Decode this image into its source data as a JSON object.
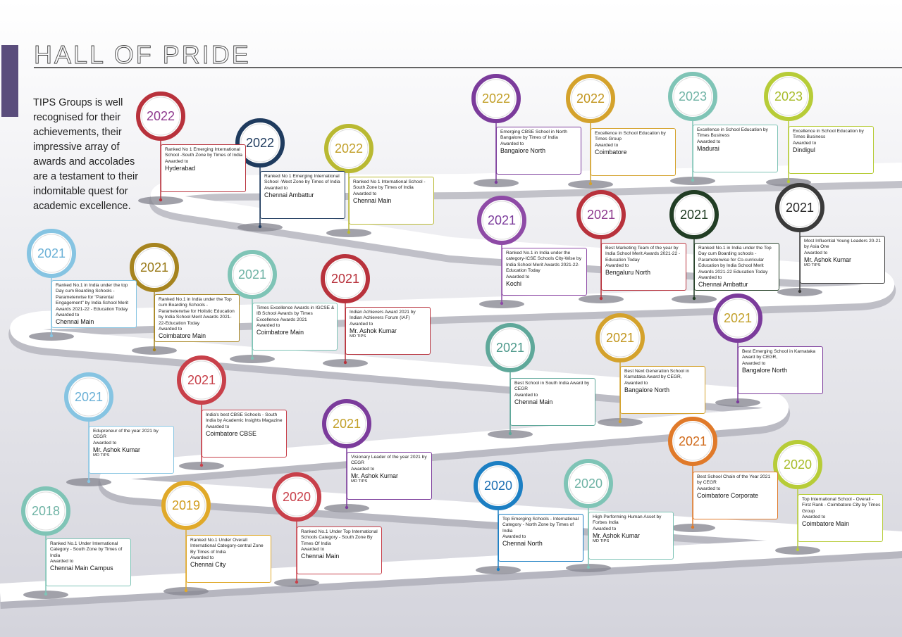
{
  "title": "HALL OF PRIDE",
  "intro": "TIPS Groups is well recognised for their achievements, their impressive array of awards and accolades are a testament to their indomitable quest for academic excellence.",
  "awards": [
    {
      "year": "2022",
      "color": "#b8323c",
      "year_color": "#8e3a8e",
      "description": "Ranked No 1 Emerging International School -South Zone by Times of India",
      "awarded_label": "Awarded to",
      "recipient": "Hyderabad"
    },
    {
      "year": "2022",
      "color": "#1f3b5e",
      "year_color": "#1f3b5e",
      "description": "Ranked No 1 Emerging International School -West Zone by Times of India",
      "awarded_label": "Awarded to",
      "recipient": "Chennai Ambattur"
    },
    {
      "year": "2022",
      "color": "#b9b932",
      "year_color": "#c2a02a",
      "description": "Ranked  No 1 International School - South Zone by Times of India",
      "awarded_label": "Awarded to",
      "recipient": "Chennai Main"
    },
    {
      "year": "2022",
      "color": "#7b3b9b",
      "year_color": "#c2a02a",
      "description": "Emerging CBSE School in North Bangalore by Times of India",
      "awarded_label": "Awarded to",
      "recipient": "Bangalore North"
    },
    {
      "year": "2022",
      "color": "#d4a22c",
      "year_color": "#c2961f",
      "description": "Excellence in School Education by Times Group",
      "awarded_label": "Awarded to",
      "recipient": "Coimbatore"
    },
    {
      "year": "2023",
      "color": "#7fc4b6",
      "year_color": "#6fb3a5",
      "description": "Excellence in School Education by Times Business",
      "awarded_label": "Awarded to",
      "recipient": "Madurai"
    },
    {
      "year": "2023",
      "color": "#b7cc38",
      "year_color": "#a8bc2a",
      "description": "Excellence in School Education by Times Business",
      "awarded_label": "Awarded to",
      "recipient": "Dindigul"
    },
    {
      "year": "2021",
      "color": "#8e4aa6",
      "year_color": "#7b3b9b",
      "description": "Ranked No.1 in India under the category-ICSE Schools City-Wise by India School Merit Awards 2021-22-Education Today",
      "awarded_label": "Awarded to",
      "recipient": "Kochi"
    },
    {
      "year": "2021",
      "color": "#b8323c",
      "year_color": "#8e3a8e",
      "description": "Best Marketing Team of the year by India School Merit Awards 2021-22 - Education Today",
      "awarded_label": "Awarded to",
      "recipient": "Bengaluru North"
    },
    {
      "year": "2021",
      "color": "#213d24",
      "year_color": "#213d24",
      "description": "Ranked No.1 in India under the Top Day cum Boarding schools - Parameterwise for Co-curricular Education by India School Merit Awards 2021-22 Education Today",
      "awarded_label": "Awarded to",
      "recipient": "Chennai Ambattur"
    },
    {
      "year": "2021",
      "color": "#3a3a3a",
      "year_color": "#2a2a2a",
      "description": "Most Influential Young Leaders 20-21 by Asia One",
      "awarded_label": "Awarded to",
      "recipient": "Mr. Ashok Kumar",
      "role": "MD TIPS"
    },
    {
      "year": "2021",
      "color": "#86c4e2",
      "year_color": "#6ab0d6",
      "description": "Ranked No.1 in India under the top  Day cum Boarding Schools - Parameterwise for \"Parental Engagement\"  by India School Merit Awards 2021-22 - Education Today",
      "awarded_label": "Awarded to",
      "recipient": "Chennai Main"
    },
    {
      "year": "2021",
      "color": "#a6841f",
      "year_color": "#9a7a18",
      "description": "Ranked No.1 in India under the Top cum Boarding Schools - Parameterwise for Holistic Education by India School Merit Awards 2021-22-Education Today",
      "awarded_label": "Awarded to",
      "recipient": "Coimbatore Main"
    },
    {
      "year": "2021",
      "color": "#7fc4b6",
      "year_color": "#6fb3a5",
      "description": "Times Excellence Awards in IGCSE & IB School Awards by Times Excellence Awards 2021",
      "awarded_label": "Awarded to",
      "recipient": "Coimbatore Main"
    },
    {
      "year": "2021",
      "color": "#b8323c",
      "year_color": "#b8323c",
      "description": "Indian Achievers Award 2021 by Indian Achievers Forum (IAF)",
      "awarded_label": "Awarded to",
      "recipient": "Mr. Ashok Kumar",
      "role": "MD TIPS"
    },
    {
      "year": "2021",
      "color": "#5fa89a",
      "year_color": "#4f9a8c",
      "description": "Best School in South India Award by CEGR",
      "awarded_label": "Awarded to",
      "recipient": "Chennai Main"
    },
    {
      "year": "2021",
      "color": "#d4a22c",
      "year_color": "#c2961f",
      "description": "Best Next Generation School in Karnataka Award by CEGR,",
      "awarded_label": "Awarded to",
      "recipient": "Bangalore North"
    },
    {
      "year": "2021",
      "color": "#7b3b9b",
      "year_color": "#c2a02a",
      "description": "Best Emerging School in Karnataka Award by CEGR,",
      "awarded_label": "Awarded to",
      "recipient": "Bangalore North"
    },
    {
      "year": "2021",
      "color": "#86c4e2",
      "year_color": "#6ab0d6",
      "description": "Edupreneur of the year 2021 by CEGR",
      "awarded_label": "Awarded to",
      "recipient": "Mr. Ashok Kumar",
      "role": "MD TIPS"
    },
    {
      "year": "2021",
      "color": "#c8404a",
      "year_color": "#c8404a",
      "description": "India's best CBSE Schools - South India by Academic Insights Magazine",
      "awarded_label": "Awarded to",
      "recipient": "Coimbatore CBSE"
    },
    {
      "year": "2021",
      "color": "#7b3b9b",
      "year_color": "#c2a02a",
      "description": "Visionary Leader of the year 2021 by CEGR",
      "awarded_label": "Awarded to",
      "recipient": "Mr. Ashok Kumar",
      "role": "MD TIPS"
    },
    {
      "year": "2021",
      "color": "#e07a2a",
      "year_color": "#d06a1a",
      "description": "Best School Chain of the Year 2021 by CEGR",
      "awarded_label": "Awarded to",
      "recipient": "Coimbatore Corporate"
    },
    {
      "year": "2020",
      "color": "#b7cc38",
      "year_color": "#a8bc2a",
      "description": "Top International School - Overall - First Rank - Coimbatore City by Times Group",
      "awarded_label": "Awarded to",
      "recipient": "Coimbatore Main"
    },
    {
      "year": "2020",
      "color": "#1c7fc3",
      "year_color": "#1c6fb3",
      "description": "Top Emerging Schools - International Category - North Zone by Times of India",
      "awarded_label": "Awarded to",
      "recipient": "Chennai North"
    },
    {
      "year": "2020",
      "color": "#7fc4b6",
      "year_color": "#6fb3a5",
      "description": "High Performing Human Asset by Forbes India",
      "awarded_label": "Awarded to",
      "recipient": "Mr. Ashok Kumar",
      "role": "MD TIPS"
    },
    {
      "year": "2018",
      "color": "#7fc4b6",
      "year_color": "#6fb3a5",
      "description": "Ranked No.1 Under International Category - South Zone by Times of India",
      "awarded_label": "Awarded to",
      "recipient": "Chennai Main Campus"
    },
    {
      "year": "2019",
      "color": "#e0a92a",
      "year_color": "#d09a1a",
      "description": "Ranked No.1 Under Overall International Category-central Zone By Times of India",
      "awarded_label": "Awarded to",
      "recipient": "Chennai City"
    },
    {
      "year": "2020",
      "color": "#c8404a",
      "year_color": "#c8404a",
      "description": "Ranked No.1 Under Top International Schools Category - South Zone By Times Of India",
      "awarded_label": "Awarded to",
      "recipient": "Chennai Main"
    }
  ]
}
